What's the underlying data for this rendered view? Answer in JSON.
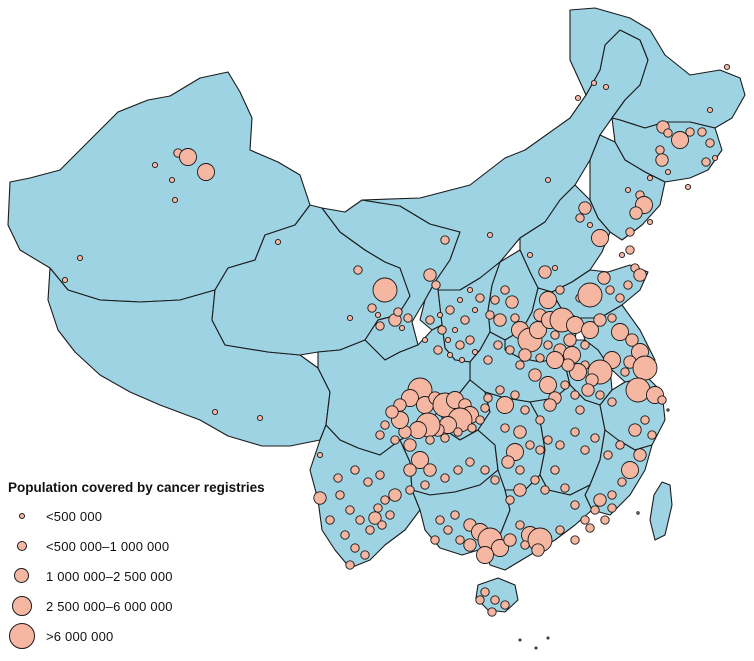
{
  "legend": {
    "title": "Population covered by cancer registries",
    "items": [
      {
        "label": "<500 000",
        "size_class": 1
      },
      {
        "label": "<500 000–1 000 000",
        "size_class": 2
      },
      {
        "label": "1 000 000–2 500 000",
        "size_class": 3
      },
      {
        "label": "2 500 000–6 000 000",
        "size_class": 4
      },
      {
        "label": ">6 000 000",
        "size_class": 5
      }
    ]
  },
  "colors": {
    "land": "#9dd3e3",
    "border": "#1b1b1b",
    "marker_fill": "#f6b7a2",
    "marker_stroke": "#1a1a1a"
  }
}
